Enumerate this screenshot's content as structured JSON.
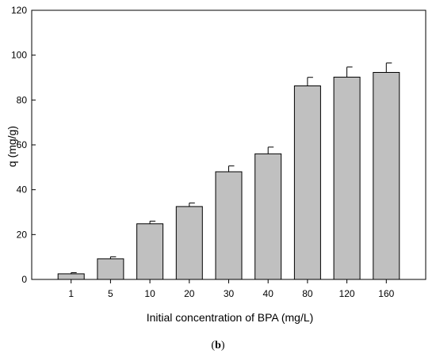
{
  "chart_data": {
    "type": "bar",
    "categories": [
      "1",
      "5",
      "10",
      "20",
      "30",
      "40",
      "80",
      "120",
      "160"
    ],
    "values": [
      2.5,
      9.2,
      24.8,
      32.5,
      48.0,
      56.0,
      86.3,
      90.2,
      92.3
    ],
    "errors": [
      0.5,
      0.9,
      1.2,
      1.6,
      2.6,
      3.0,
      3.8,
      4.5,
      4.2
    ],
    "xlabel": "Initial concentration of BPA (mg/L)",
    "ylabel": "q (mg/g)",
    "ylim": [
      0,
      120
    ],
    "yticks": [
      0,
      20,
      40,
      60,
      80,
      100,
      120
    ],
    "grid": false,
    "bar_color": "#c0c0c0",
    "edge_color": "#000000"
  },
  "caption": {
    "open": "(",
    "label": "b",
    "close": ")"
  }
}
